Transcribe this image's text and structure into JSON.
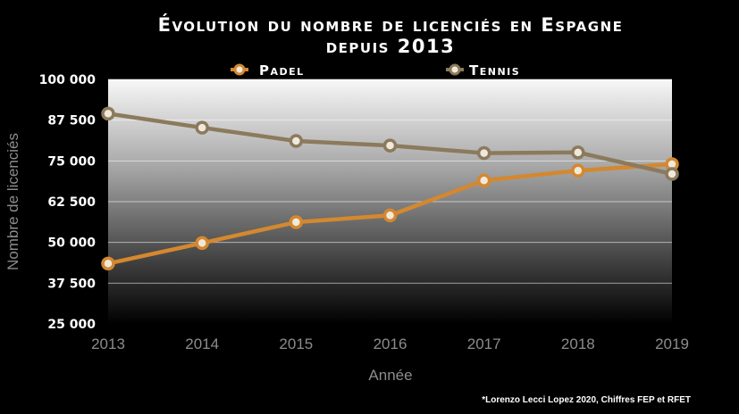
{
  "chart_data": {
    "type": "line",
    "title_line1": "Évolution du nombre de licenciés en Espagne",
    "title_line2": "depuis 2013",
    "xlabel": "Année",
    "ylabel": "Nombre de licenciés",
    "x": [
      2013,
      2014,
      2015,
      2016,
      2017,
      2018,
      2019
    ],
    "x_tick_labels": [
      "2013",
      "2014",
      "2015",
      "2016",
      "2017",
      "2018",
      "2019"
    ],
    "y_tick_values": [
      25000,
      37500,
      50000,
      62500,
      75000,
      87500,
      100000
    ],
    "y_tick_labels": [
      "25 000",
      "37 500",
      "50 000",
      "62 500",
      "75 000",
      "87 500",
      "100 000"
    ],
    "ylim": [
      25000,
      100000
    ],
    "grid": true,
    "legend_position": "top",
    "series": [
      {
        "name": "Padel",
        "color": "#d4882f",
        "values": [
          43500,
          49800,
          56200,
          58300,
          69000,
          72000,
          74000
        ]
      },
      {
        "name": "Tennis",
        "color": "#8b7a5c",
        "values": [
          89500,
          85200,
          81100,
          79700,
          77400,
          77600,
          71000
        ]
      }
    ],
    "source": "*Lorenzo Lecci Lopez 2020, Chiffres FEP et RFET"
  }
}
